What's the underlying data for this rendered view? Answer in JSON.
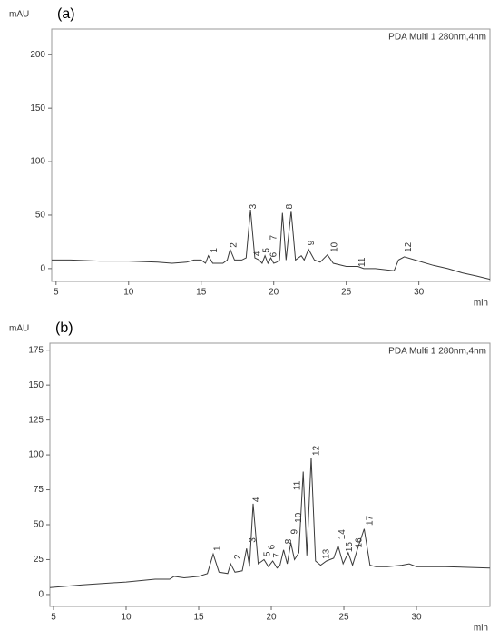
{
  "chart_data": [
    {
      "type": "line",
      "panel": "(a)",
      "y_label": "mAU",
      "x_label": "min",
      "xlim": [
        4.7,
        34.9
      ],
      "ylim": [
        -12,
        224
      ],
      "xticks": [
        5,
        10,
        15,
        20,
        25,
        30
      ],
      "yticks": [
        0,
        50,
        100,
        150,
        200
      ],
      "x": [
        4.7,
        6,
        8,
        10,
        12,
        13,
        14,
        14.5,
        15,
        15.3,
        15.5,
        15.8,
        16.5,
        16.8,
        17,
        17.3,
        17.8,
        18.1,
        18.4,
        18.7,
        19,
        19.2,
        19.4,
        19.6,
        19.8,
        20,
        20.2,
        20.4,
        20.6,
        20.85,
        21.2,
        21.5,
        21.9,
        22.1,
        22.4,
        22.8,
        23.2,
        23.7,
        24.1,
        25,
        25.8,
        26.2,
        27,
        28.3,
        28.6,
        29,
        30,
        31,
        32,
        33,
        34,
        34.9
      ],
      "series": [
        {
          "name": "PDA Multi 1 280nm,4nm",
          "color": "#3a3a3a",
          "values": [
            8,
            8,
            7,
            7,
            6,
            5,
            6,
            8,
            8,
            5,
            12,
            5,
            5,
            8,
            18,
            8,
            8,
            10,
            55,
            10,
            8,
            5,
            12,
            5,
            10,
            5,
            6,
            8,
            52,
            8,
            54,
            8,
            12,
            8,
            18,
            8,
            6,
            13,
            5,
            2,
            2,
            0,
            0,
            -2,
            8,
            11,
            7,
            3,
            0,
            -4,
            -7,
            -10
          ]
        }
      ],
      "annotations": [
        {
          "text": "1",
          "x": 15.9,
          "y": 17
        },
        {
          "text": "2",
          "x": 17.25,
          "y": 22
        },
        {
          "text": "3",
          "x": 18.6,
          "y": 58
        },
        {
          "text": "4",
          "x": 18.9,
          "y": 14
        },
        {
          "text": "5",
          "x": 19.5,
          "y": 17
        },
        {
          "text": "6",
          "x": 20,
          "y": 13
        },
        {
          "text": "7",
          "x": 20,
          "y": 29
        },
        {
          "text": "8",
          "x": 21.1,
          "y": 58
        },
        {
          "text": "9",
          "x": 22.6,
          "y": 24
        },
        {
          "text": "10",
          "x": 24.2,
          "y": 20
        },
        {
          "text": "11",
          "x": 26.1,
          "y": 6
        },
        {
          "text": "12",
          "x": 29.3,
          "y": 20
        }
      ]
    },
    {
      "type": "line",
      "panel": "(b)",
      "y_label": "mAU",
      "x_label": "min",
      "xlim": [
        4.75,
        35.06
      ],
      "ylim": [
        -8.5,
        180
      ],
      "xticks": [
        5,
        10,
        15,
        20,
        25,
        30
      ],
      "yticks": [
        0,
        25,
        50,
        75,
        100,
        125,
        150,
        175
      ],
      "x": [
        4.75,
        7,
        10,
        12,
        13,
        13.3,
        14,
        15,
        15.6,
        16,
        16.4,
        17,
        17.2,
        17.5,
        18,
        18.3,
        18.5,
        18.75,
        19.1,
        19.5,
        19.8,
        20.1,
        20.4,
        20.6,
        20.85,
        21.1,
        21.35,
        21.6,
        21.9,
        22.2,
        22.45,
        22.75,
        23.05,
        23.4,
        23.8,
        24.3,
        24.6,
        24.95,
        25.3,
        25.6,
        25.95,
        26.4,
        26.8,
        27.2,
        28,
        29,
        29.5,
        30,
        32,
        35.06
      ],
      "series": [
        {
          "name": "PDA Multi 1 280nm,4nm",
          "color": "#3a3a3a",
          "values": [
            5,
            7,
            9,
            11,
            11,
            13,
            12,
            13,
            15,
            29,
            16,
            15,
            22,
            16,
            17,
            33,
            20,
            65,
            22,
            25,
            20,
            24,
            19,
            21,
            32,
            22,
            37,
            25,
            30,
            88,
            28,
            98,
            24,
            21,
            24,
            26,
            35,
            22,
            30,
            21,
            33,
            47,
            21,
            20,
            20,
            21,
            22,
            20,
            20,
            19
          ]
        }
      ],
      "annotations": [
        {
          "text": "1",
          "x": 16.3,
          "y": 33
        },
        {
          "text": "2",
          "x": 17.7,
          "y": 27
        },
        {
          "text": "3",
          "x": 18.75,
          "y": 39
        },
        {
          "text": "4",
          "x": 19.0,
          "y": 68
        },
        {
          "text": "5",
          "x": 19.75,
          "y": 29
        },
        {
          "text": "6",
          "x": 20.06,
          "y": 34
        },
        {
          "text": "7",
          "x": 20.4,
          "y": 28
        },
        {
          "text": "8",
          "x": 21.2,
          "y": 38
        },
        {
          "text": "9",
          "x": 21.6,
          "y": 45
        },
        {
          "text": "10",
          "x": 21.9,
          "y": 55
        },
        {
          "text": "11",
          "x": 21.8,
          "y": 78
        },
        {
          "text": "12",
          "x": 23.1,
          "y": 103
        },
        {
          "text": "13",
          "x": 23.8,
          "y": 29
        },
        {
          "text": "14",
          "x": 24.9,
          "y": 43
        },
        {
          "text": "15",
          "x": 25.4,
          "y": 34
        },
        {
          "text": "16",
          "x": 26.05,
          "y": 37
        },
        {
          "text": "17",
          "x": 26.8,
          "y": 53
        }
      ]
    }
  ]
}
